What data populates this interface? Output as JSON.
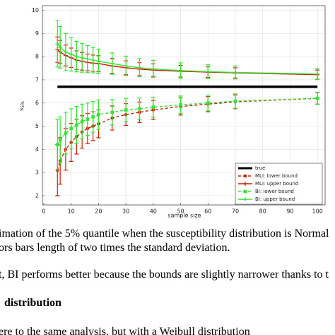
{
  "chart_data": {
    "type": "errorbar_line",
    "x_label": "sample size",
    "y_label": "s",
    "y_label_sub": "5%",
    "x": [
      5,
      6,
      8,
      10,
      12,
      14,
      16,
      18,
      20,
      25,
      30,
      35,
      40,
      50,
      60,
      70,
      100
    ],
    "series": [
      {
        "name": "true",
        "color": "#000000",
        "style": "solid",
        "marker": "none",
        "x": [
          5,
          100
        ],
        "values": [
          6.7,
          6.7
        ]
      },
      {
        "name": "MLI: lower bound",
        "color": "#cc1f00",
        "style": "dashed",
        "marker": "circle",
        "values": [
          3.1,
          3.5,
          4.0,
          4.3,
          4.55,
          4.75,
          4.9,
          5.0,
          5.1,
          5.35,
          5.5,
          5.6,
          5.7,
          5.85,
          5.95,
          6.05,
          6.2
        ],
        "errors": [
          1.1,
          1.0,
          0.9,
          0.82,
          0.75,
          0.7,
          0.65,
          0.62,
          0.6,
          0.52,
          0.47,
          0.44,
          0.41,
          0.37,
          0.33,
          0.3,
          0.25
        ]
      },
      {
        "name": "MLI: upper bound",
        "color": "#cc1f00",
        "style": "solid",
        "marker": "plus",
        "values": [
          8.3,
          8.2,
          8.05,
          7.95,
          7.85,
          7.8,
          7.75,
          7.72,
          7.7,
          7.6,
          7.52,
          7.46,
          7.42,
          7.37,
          7.33,
          7.3,
          7.22
        ],
        "errors": [
          0.55,
          0.5,
          0.45,
          0.42,
          0.4,
          0.38,
          0.36,
          0.35,
          0.34,
          0.32,
          0.3,
          0.28,
          0.27,
          0.25,
          0.23,
          0.22,
          0.2
        ]
      },
      {
        "name": "BI: lower bound",
        "color": "#33e633",
        "style": "dashed",
        "marker": "square",
        "values": [
          4.2,
          4.4,
          4.7,
          4.9,
          5.05,
          5.2,
          5.3,
          5.4,
          5.5,
          5.6,
          5.7,
          5.75,
          5.82,
          5.92,
          6.0,
          6.08,
          6.2
        ],
        "errors": [
          1.1,
          1.0,
          0.9,
          0.85,
          0.8,
          0.75,
          0.7,
          0.66,
          0.63,
          0.55,
          0.5,
          0.46,
          0.43,
          0.38,
          0.34,
          0.31,
          0.26
        ]
      },
      {
        "name": "BI: upper bound",
        "color": "#33e633",
        "style": "solid",
        "marker": "plus",
        "values": [
          8.55,
          8.4,
          8.2,
          8.1,
          8.0,
          7.95,
          7.9,
          7.85,
          7.8,
          7.7,
          7.6,
          7.52,
          7.47,
          7.4,
          7.35,
          7.32,
          7.25
        ],
        "errors": [
          1.0,
          0.9,
          0.8,
          0.72,
          0.66,
          0.62,
          0.58,
          0.55,
          0.52,
          0.46,
          0.42,
          0.39,
          0.37,
          0.33,
          0.3,
          0.28,
          0.24
        ]
      }
    ],
    "xlim": [
      -0.5,
      102.8
    ],
    "xticks": [
      0,
      10,
      20,
      30,
      40,
      50,
      60,
      70,
      80,
      90,
      100
    ],
    "ylim": [
      1.6,
      10.2
    ],
    "yticks": [
      2,
      3,
      4,
      5,
      6,
      7,
      8,
      9,
      10
    ],
    "grid": true,
    "legend": "lower right"
  },
  "text": {
    "caption": [
      "imation of the 5% quantile when the susceptibility distribution is Normal",
      "ors bars length of two times the standard deviation."
    ],
    "paragraph": "t, BI performs better because the bounds are slightly narrower thanks to t",
    "heading": "distribution",
    "paragraph2": "ere to the same analysis, but with a Weibull distribution"
  }
}
